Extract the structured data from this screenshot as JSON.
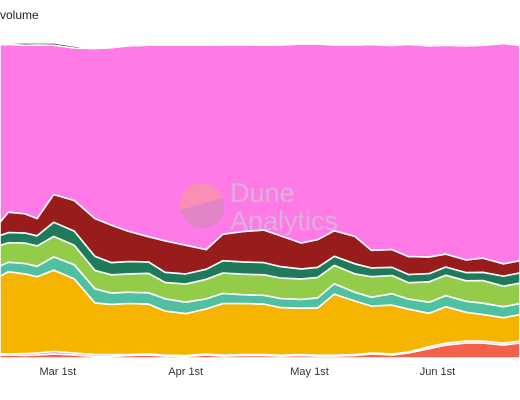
{
  "title": "volume",
  "watermark": {
    "line1": "Dune",
    "line2": "Analytics",
    "icon": "dune-logo-icon"
  },
  "chart_data": {
    "type": "area",
    "stacked": true,
    "normalized": true,
    "title": "volume",
    "xlabel": "",
    "ylabel": "",
    "ylim": [
      0,
      100
    ],
    "grid": false,
    "legend": "none",
    "x": [
      "2021-02-15",
      "2021-02-17",
      "2021-02-21",
      "2021-02-24",
      "2021-02-28",
      "2021-03-05",
      "2021-03-10",
      "2021-03-14",
      "2021-03-18",
      "2021-03-23",
      "2021-03-27",
      "2021-04-01",
      "2021-04-06",
      "2021-04-10",
      "2021-04-15",
      "2021-04-20",
      "2021-04-24",
      "2021-04-29",
      "2021-05-03",
      "2021-05-07",
      "2021-05-12",
      "2021-05-16",
      "2021-05-21",
      "2021-05-25",
      "2021-05-30",
      "2021-06-03",
      "2021-06-08",
      "2021-06-12",
      "2021-06-17",
      "2021-06-21"
    ],
    "x_ticks": [
      "Mar 1st",
      "Apr 1st",
      "May 1st",
      "Jun 1st"
    ],
    "series": [
      {
        "color": "#f4604a",
        "values": [
          1.0,
          1.0,
          0.8,
          1.0,
          1.3,
          1.0,
          0.5,
          0.5,
          0.8,
          1.0,
          0.6,
          0.5,
          1.0,
          0.6,
          0.8,
          0.8,
          0.6,
          0.8,
          0.6,
          0.6,
          0.8,
          1.3,
          1.0,
          1.6,
          3.0,
          4.1,
          4.8,
          4.8,
          4.1,
          4.8
        ]
      },
      {
        "color": "#e36fae",
        "values": [
          0.3,
          0.3,
          0.6,
          0.6,
          0.8,
          0.6,
          0.6,
          0.6,
          0.3,
          0.3,
          0.3,
          0.3,
          0.3,
          0.3,
          0.3,
          0.3,
          0.3,
          0.3,
          0.3,
          0.3,
          0.3,
          0.3,
          0.3,
          0.3,
          0.6,
          0.6,
          0.6,
          0.6,
          0.6,
          0.6
        ]
      },
      {
        "color": "#f4b400",
        "values": [
          24.6,
          26.1,
          25.3,
          24.2,
          25.8,
          23.5,
          16.4,
          15.9,
          16.2,
          15.8,
          14.0,
          13.3,
          14.3,
          16.4,
          16.2,
          16.0,
          15.1,
          14.7,
          15.0,
          19.4,
          17.0,
          14.9,
          15.5,
          13.6,
          10.6,
          11.6,
          9.1,
          8.4,
          8.1,
          8.4
        ]
      },
      {
        "color": "#4fc0a0",
        "values": [
          3.3,
          3.0,
          3.3,
          3.3,
          4.2,
          4.5,
          4.5,
          3.6,
          3.6,
          3.6,
          3.9,
          3.6,
          3.2,
          3.2,
          2.8,
          2.8,
          2.9,
          2.8,
          3.2,
          3.3,
          2.8,
          2.8,
          3.6,
          3.2,
          3.5,
          3.5,
          3.5,
          3.6,
          3.5,
          3.5
        ]
      },
      {
        "color": "#93cc48",
        "values": [
          6.5,
          6.2,
          6.5,
          6.5,
          6.5,
          6.2,
          5.8,
          5.8,
          5.8,
          6.2,
          5.2,
          5.8,
          6.2,
          6.5,
          6.5,
          6.5,
          6.5,
          6.5,
          6.5,
          5.8,
          5.8,
          6.5,
          5.8,
          5.2,
          6.5,
          6.5,
          6.5,
          7.2,
          6.5,
          6.5
        ]
      },
      {
        "color": "#1f7a5c",
        "values": [
          3.2,
          3.2,
          3.2,
          3.2,
          4.5,
          4.5,
          4.5,
          3.9,
          3.9,
          3.6,
          3.2,
          3.2,
          3.2,
          3.9,
          3.9,
          3.9,
          3.6,
          3.2,
          3.2,
          2.9,
          3.2,
          2.8,
          2.6,
          2.6,
          2.6,
          2.6,
          2.6,
          2.6,
          3.2,
          3.2
        ]
      },
      {
        "color": "#991c1c",
        "values": [
          4.2,
          6.5,
          6.1,
          5.5,
          8.8,
          9.7,
          12.0,
          11.9,
          9.7,
          8.0,
          10.0,
          9.1,
          6.2,
          8.4,
          9.7,
          10.3,
          9.8,
          8.2,
          8.8,
          8.1,
          8.7,
          5.6,
          5.6,
          5.7,
          5.3,
          4.1,
          4.0,
          4.5,
          3.9,
          3.9
        ]
      },
      {
        "color": "#ff7ae6",
        "values": [
          56.4,
          53.3,
          53.5,
          55.1,
          47.4,
          48.4,
          54.0,
          56.3,
          58.8,
          60.8,
          62.1,
          63.5,
          64.9,
          60.1,
          59.2,
          58.7,
          60.6,
          63.2,
          62.1,
          59.0,
          60.8,
          65.3,
          64.8,
          67.4,
          67.0,
          66.3,
          68.0,
          67.6,
          69.9,
          68.4
        ]
      },
      {
        "color": "#0b0b0b",
        "values": [
          0.5,
          0.4,
          0.7,
          0.6,
          0.7,
          0.6,
          0.3,
          0.5,
          0.3,
          0.3,
          0.3,
          0.3,
          0.3,
          0.5,
          0.3,
          0.3,
          0.3,
          0.3,
          0.3,
          0.3,
          0.3,
          0.3,
          0.3,
          0.3,
          0.3,
          0.3,
          0.3,
          0.3,
          0.3,
          0.3
        ]
      }
    ]
  }
}
